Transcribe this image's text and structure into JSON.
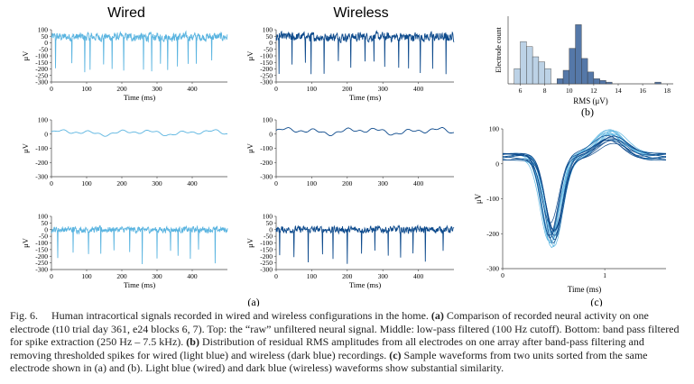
{
  "column_titles": {
    "wired": "Wired",
    "wireless": "Wireless"
  },
  "colors": {
    "wired": "#5ab4e0",
    "wireless": "#0d4a8c",
    "hist_light": "#bcd2e6",
    "hist_dark": "#5578a8"
  },
  "panel_labels": {
    "a": "(a)",
    "b": "(b)",
    "c": "(c)"
  },
  "chart_data": [
    {
      "id": "raw",
      "type": "line",
      "ylabel": "μV",
      "xlabel": "Time (ms)",
      "xlim": [
        0,
        500
      ],
      "ylim": [
        -300,
        100
      ],
      "xticks": [
        "0",
        "100",
        "200",
        "300",
        "400"
      ],
      "yticks": [
        "100",
        "50",
        "0",
        "-50",
        "-100",
        "-150",
        "-200",
        "-250",
        "-300"
      ],
      "series": [
        {
          "column": "wired",
          "baseline": 45,
          "noise": 22,
          "smooth": false,
          "spikes_ms": [
            12,
            58,
            95,
            110,
            148,
            172,
            205,
            262,
            285,
            310,
            330,
            358,
            388,
            412,
            455
          ],
          "spike_depth": -240
        },
        {
          "column": "wireless",
          "baseline": 45,
          "noise": 24,
          "smooth": false,
          "spikes_ms": [
            8,
            45,
            82,
            98,
            135,
            175,
            210,
            250,
            275,
            305,
            345,
            372,
            405,
            440,
            478
          ],
          "spike_depth": -250
        }
      ]
    },
    {
      "id": "lfp",
      "type": "line",
      "ylabel": "μV",
      "xlabel": "",
      "xlim": [
        0,
        500
      ],
      "ylim": [
        -300,
        100
      ],
      "xticks": [
        "0",
        "100",
        "200",
        "300",
        "400"
      ],
      "yticks": [
        "100",
        "0",
        "-100",
        "-200",
        "-300"
      ],
      "series": [
        {
          "column": "wired",
          "baseline": 10,
          "noise": 18,
          "smooth": true
        },
        {
          "column": "wireless",
          "baseline": 20,
          "noise": 22,
          "smooth": true
        }
      ]
    },
    {
      "id": "bandpass",
      "type": "line",
      "ylabel": "μV",
      "xlabel": "Time (ms)",
      "xlim": [
        0,
        500
      ],
      "ylim": [
        -300,
        100
      ],
      "xticks": [
        "0",
        "100",
        "200",
        "300",
        "400"
      ],
      "yticks": [
        "100",
        "50",
        "0",
        "-50",
        "-100",
        "-150",
        "-200",
        "-250",
        "-300"
      ],
      "series": [
        {
          "column": "wired",
          "baseline": 0,
          "noise": 16,
          "smooth": false,
          "spikes_ms": [
            18,
            62,
            105,
            140,
            178,
            222,
            258,
            300,
            338,
            360,
            395,
            418,
            465
          ],
          "spike_depth": -260
        },
        {
          "column": "wireless",
          "baseline": 0,
          "noise": 18,
          "smooth": false,
          "spikes_ms": [
            10,
            50,
            90,
            130,
            160,
            200,
            240,
            278,
            315,
            350,
            385,
            420,
            470
          ],
          "spike_depth": -270
        }
      ]
    },
    {
      "id": "rms_hist",
      "type": "bar",
      "xlabel": "RMS (μV)",
      "ylabel": "Electrode count",
      "xlim": [
        5,
        18.5
      ],
      "ylim": [
        0,
        40
      ],
      "xticks": [
        "6",
        "8",
        "10",
        "12",
        "14",
        "16",
        "18"
      ],
      "series": [
        {
          "name": "wired",
          "color": "light",
          "bins": [
            [
              5.5,
              9
            ],
            [
              6.0,
              25
            ],
            [
              6.5,
              22
            ],
            [
              7.0,
              16
            ],
            [
              7.5,
              13
            ],
            [
              8.0,
              9
            ]
          ]
        },
        {
          "name": "wireless",
          "color": "dark",
          "bins": [
            [
              9.0,
              3
            ],
            [
              9.5,
              8
            ],
            [
              10.0,
              21
            ],
            [
              10.5,
              35
            ],
            [
              11.0,
              15
            ],
            [
              11.5,
              7
            ],
            [
              12.0,
              3
            ],
            [
              12.5,
              2
            ],
            [
              13.0,
              1
            ],
            [
              17.0,
              1
            ]
          ]
        }
      ]
    },
    {
      "id": "waveforms",
      "type": "line",
      "xlabel": "Time (ms)",
      "ylabel": "μV",
      "xlim": [
        0,
        1.6
      ],
      "ylim": [
        -300,
        100
      ],
      "xticks": [
        "0",
        "1"
      ],
      "yticks": [
        "100",
        "0",
        "-100",
        "-200",
        "-300"
      ],
      "series": [
        {
          "name": "wired",
          "count": 9
        },
        {
          "name": "wireless",
          "count": 9
        }
      ]
    }
  ],
  "caption": {
    "fig_label": "Fig. 6.",
    "intro": "Human intracortical signals recorded in wired and wireless configurations in the home. ",
    "a_tag": "(a)",
    "a_text": " Comparison of recorded neural activity on one electrode (t10 trial day 361, e24 blocks 6, 7). Top: the “raw” unfiltered neural signal. Middle: low-pass filtered (100 Hz cutoff). Bottom: band pass filtered for spike extraction (250 Hz – 7.5 kHz). ",
    "b_tag": "(b)",
    "b_text": " Distribution of residual RMS amplitudes from all electrodes on one array after band-pass filtering and removing thresholded spikes for wired (light blue) and wireless (dark blue) recordings. ",
    "c_tag": "(c)",
    "c_text": " Sample waveforms from two units sorted from the same electrode shown in (a) and (b). Light blue (wired) and dark blue (wireless) waveforms show substantial similarity."
  }
}
